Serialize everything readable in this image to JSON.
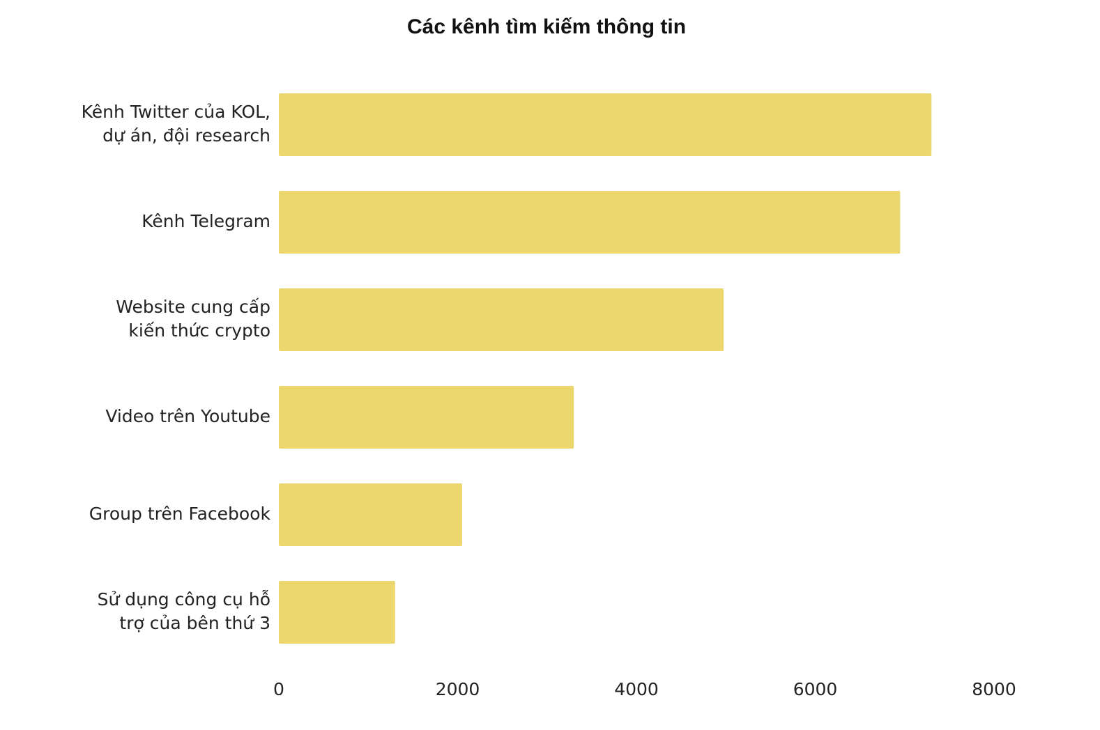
{
  "chart_data": {
    "type": "bar",
    "orientation": "horizontal",
    "title": "Các kênh tìm kiếm thông tin",
    "categories": [
      [
        "Kênh Twitter của KOL,",
        "dự án, đội research"
      ],
      [
        "Kênh Telegram"
      ],
      [
        "Website cung cấp",
        "kiến thức crypto"
      ],
      [
        "Video trên Youtube"
      ],
      [
        "Group trên Facebook"
      ],
      [
        "Sử dụng công cụ hỗ",
        "trợ của bên thứ 3"
      ]
    ],
    "values": [
      7300,
      6950,
      4975,
      3300,
      2050,
      1300
    ],
    "color": "#ecd66e",
    "xlim": [
      0,
      8000
    ],
    "xticks": [
      0,
      2000,
      4000,
      6000,
      8000
    ],
    "grid": false
  }
}
